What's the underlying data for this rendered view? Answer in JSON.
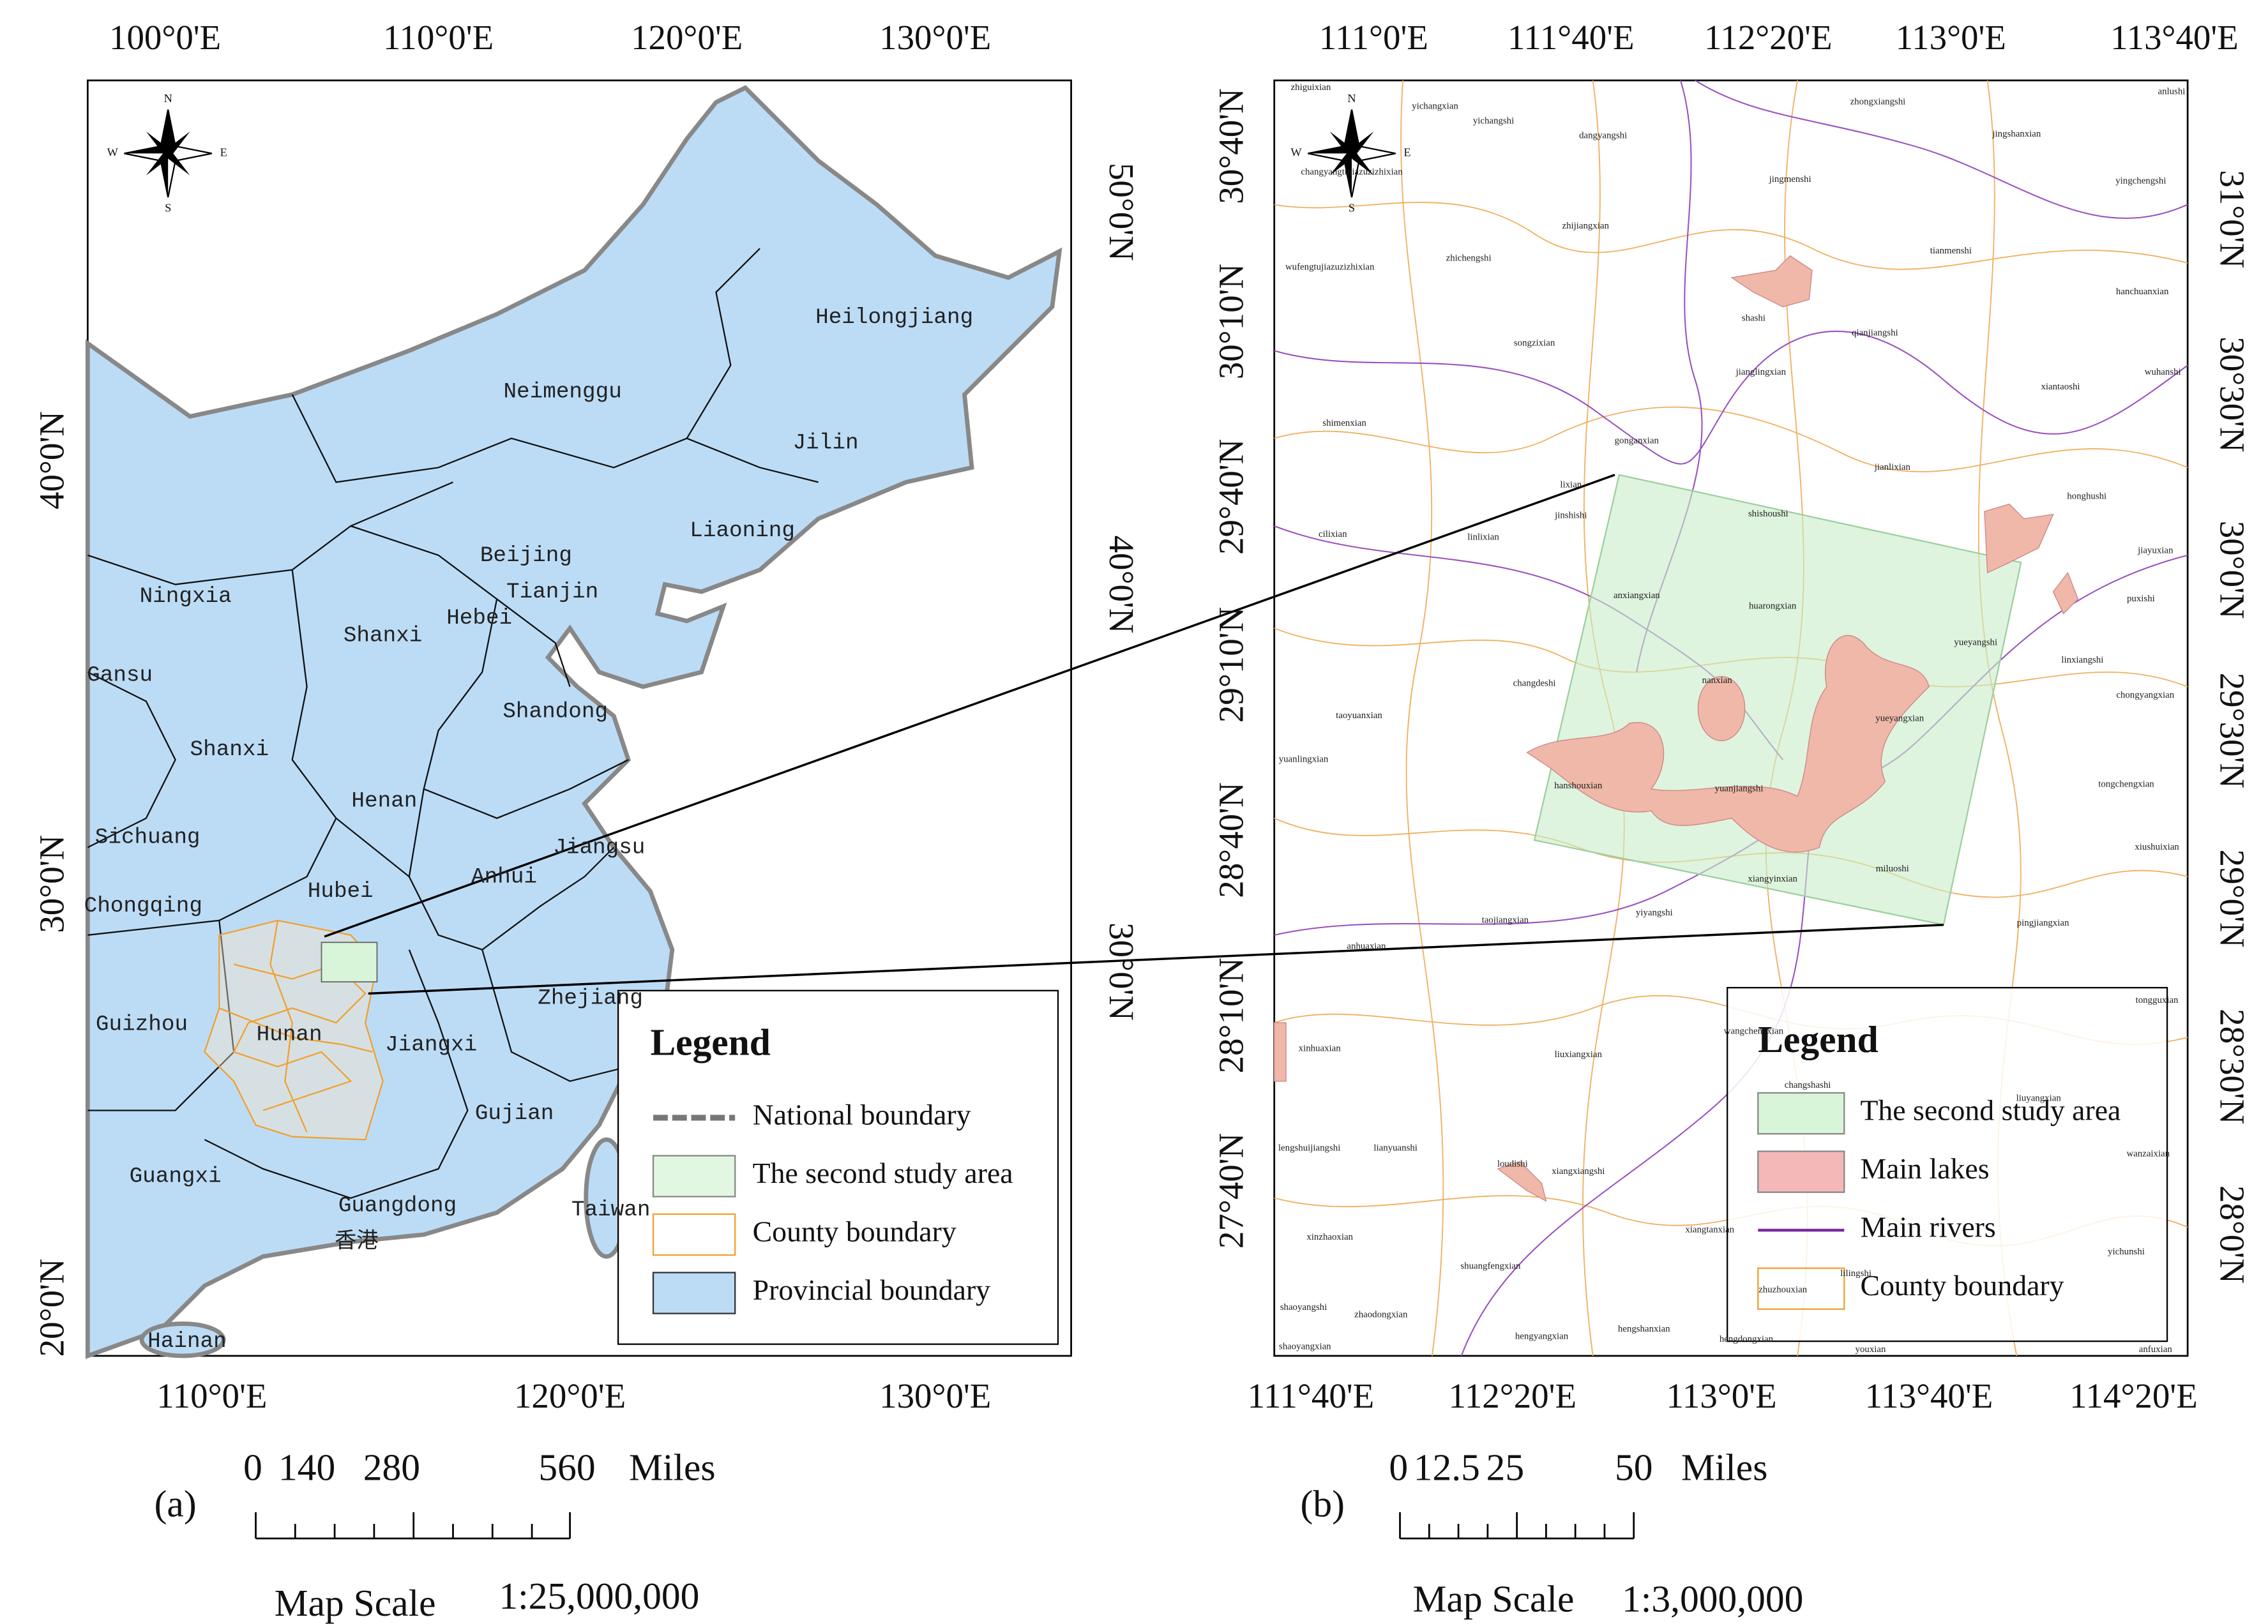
{
  "panel_a": {
    "label": "(a)",
    "top_lon_labels": [
      "100°0'E",
      "110°0'E",
      "120°0'E",
      "130°0'E"
    ],
    "bottom_lon_labels": [
      "110°0'E",
      "120°0'E",
      "130°0'E"
    ],
    "left_lat_labels": [
      "40°0'N",
      "30°0'N",
      "20°0'N"
    ],
    "right_lat_labels": [
      "50°0'N",
      "40°0'N",
      "30°0'N"
    ],
    "compass": [
      "N",
      "S",
      "W",
      "E"
    ],
    "provinces": [
      "Heilongjiang",
      "Neimenggu",
      "Jilin",
      "Liaoning",
      "Ningxia",
      "Beijing",
      "Tianjin",
      "Hebei",
      "Shanxi",
      "Gansu",
      "Shandong",
      "Shanxi",
      "Henan",
      "Sichuang",
      "Jiangsu",
      "Anhui",
      "Hubei",
      "Chongqing",
      "Zhejiang",
      "Guizhou",
      "Hunan",
      "Jiangxi",
      "Gujian",
      "Guangxi",
      "Guangdong",
      "Taiwan",
      "Hainan",
      "香港"
    ],
    "legend": {
      "title": "Legend",
      "items": [
        "National boundary",
        "The second study area",
        "County boundary",
        "Provincial boundary"
      ]
    },
    "scale": {
      "ticks": [
        "0",
        "140",
        "280",
        "560"
      ],
      "unit": "Miles",
      "label": "Map Scale",
      "ratio": "1:25,000,000"
    }
  },
  "panel_b": {
    "label": "(b)",
    "top_lon_labels": [
      "111°0'E",
      "111°40'E",
      "112°20'E",
      "113°0'E",
      "113°40'E"
    ],
    "bottom_lon_labels": [
      "111°40'E",
      "112°20'E",
      "113°0'E",
      "113°40'E",
      "114°20'E"
    ],
    "left_lat_labels": [
      "30°40'N",
      "30°10'N",
      "29°40'N",
      "29°10'N",
      "28°40'N",
      "28°10'N",
      "27°40'N"
    ],
    "right_lat_labels": [
      "31°0'N",
      "30°30'N",
      "30°0'N",
      "29°30'N",
      "29°0'N",
      "28°30'N",
      "28°0'N"
    ],
    "compass": [
      "N",
      "S",
      "W",
      "E"
    ],
    "counties": [
      "zhiguixian",
      "yichangxian",
      "yichangshi",
      "dangyangshi",
      "zhongxiangshi",
      "anlushi",
      "jingshanxian",
      "changyangtujiazuzizhixian",
      "jingmenshi",
      "yingchengshi",
      "zhijiangxian",
      "zhichengshi",
      "tianmenshi",
      "wufengtujiazuzizhixian",
      "hanchuanxian",
      "shashi",
      "qianjiangshi",
      "songzixian",
      "jianglingxian",
      "wuhanshi",
      "xiantaoshi",
      "shimenxian",
      "gonganxian",
      "jianlixian",
      "lixian",
      "honghushi",
      "jinshishi",
      "shishoushi",
      "cilixian",
      "linlixian",
      "jiayuxian",
      "puxishi",
      "anxiangxian",
      "huarongxian",
      "yueyangshi",
      "linxiangshi",
      "changdeshi",
      "nanxian",
      "chongyangxian",
      "taoyuanxian",
      "yueyangxian",
      "yuanlingxian",
      "hanshouxian",
      "yuanjiangshi",
      "tongchengxian",
      "xiushuixian",
      "xiangyinxian",
      "miluoshi",
      "taojiangxian",
      "yiyangshi",
      "pingjiangxian",
      "anhuaxian",
      "tongguxian",
      "wangchengxian",
      "changshashi",
      "liuyangxian",
      "xinhuaxian",
      "liuxiangxian",
      "wanzaixian",
      "lianyuanshi",
      "loudishi",
      "xiangxiangshi",
      "lengshuijiangshi",
      "xiangtanxian",
      "zhuzhouxian",
      "xinzhaoxian",
      "lilingshi",
      "shuangfengxian",
      "yichunshi",
      "shaoyangshi",
      "zhaodongxian",
      "hengyangxian",
      "hengshanxian",
      "hengdongxian",
      "youxian",
      "anfuxian",
      "shaoyangxian"
    ],
    "legend": {
      "title": "Legend",
      "items": [
        "The second study area",
        "Main lakes",
        "Main rivers",
        "County boundary"
      ]
    },
    "scale": {
      "ticks": [
        "0",
        "12.5",
        "25",
        "50"
      ],
      "unit": "Miles",
      "label": "Map Scale",
      "ratio": "1:3,000,000"
    }
  }
}
